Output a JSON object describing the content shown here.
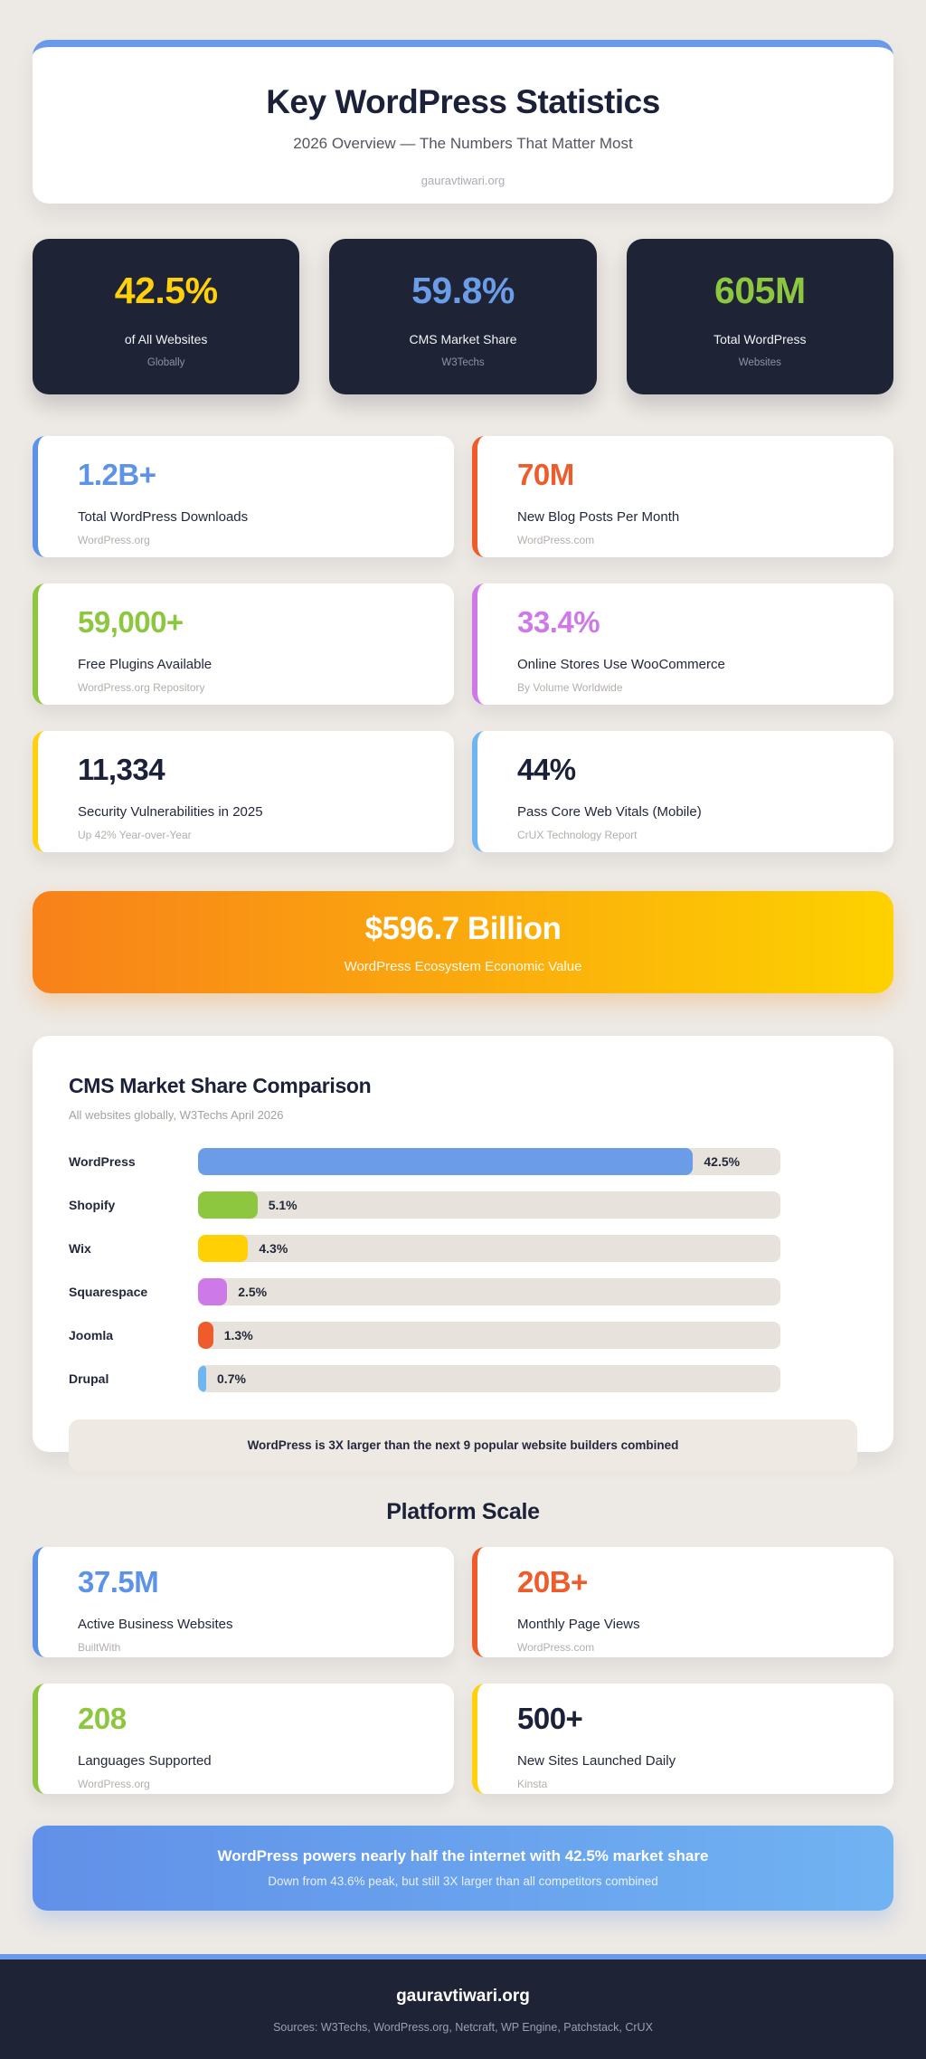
{
  "header": {
    "title": "Key WordPress Statistics",
    "subtitle": "2026 Overview — The Numbers That Matter Most",
    "site": "gauravtiwari.org",
    "accent_color": "#6b9ae8"
  },
  "hero_stats": [
    {
      "value": "42.5%",
      "value_color": "#ffd10a",
      "label": "of All Websites",
      "source": "Globally"
    },
    {
      "value": "59.8%",
      "value_color": "#6b9ce8",
      "label": "CMS Market Share",
      "source": "W3Techs"
    },
    {
      "value": "605M",
      "value_color": "#8dc63f",
      "label": "Total WordPress",
      "source": "Websites"
    }
  ],
  "stat_cards": [
    {
      "value": "1.2B+",
      "accent": "#5c93e8",
      "value_color": "#5c93e8",
      "label": "Total WordPress Downloads",
      "source": "WordPress.org"
    },
    {
      "value": "70M",
      "accent": "#ee5c2c",
      "value_color": "#ee5c2c",
      "label": "New Blog Posts Per Month",
      "source": "WordPress.com"
    },
    {
      "value": "59,000+",
      "accent": "#8dc63f",
      "value_color": "#8dc63f",
      "label": "Free Plugins Available",
      "source": "WordPress.org Repository"
    },
    {
      "value": "33.4%",
      "accent": "#cd7ae8",
      "value_color": "#cd7ae8",
      "label": "Online Stores Use WooCommerce",
      "source": "By Volume Worldwide"
    },
    {
      "value": "11,334",
      "accent": "#ffd10a",
      "value_color": "#1b2138",
      "label": "Security Vulnerabilities in 2025",
      "source": "Up 42% Year-over-Year"
    },
    {
      "value": "44%",
      "accent": "#6fb5f2",
      "value_color": "#1b2138",
      "label": "Pass Core Web Vitals (Mobile)",
      "source": "CrUX Technology Report"
    }
  ],
  "banner_orange": {
    "value": "$596.7 Billion",
    "label": "WordPress Ecosystem Economic Value",
    "gradient": [
      "#f8811a",
      "#fdd200"
    ]
  },
  "chart_data": {
    "type": "bar",
    "orientation": "horizontal",
    "title": "CMS Market Share Comparison",
    "subtitle": "All websites globally, W3Techs April 2026",
    "categories": [
      "WordPress",
      "Shopify",
      "Wix",
      "Squarespace",
      "Joomla",
      "Drupal"
    ],
    "values": [
      42.5,
      5.1,
      4.3,
      2.5,
      1.3,
      0.7
    ],
    "value_labels": [
      "42.5%",
      "5.1%",
      "4.3%",
      "2.5%",
      "1.3%",
      "0.7%"
    ],
    "bar_colors": [
      "#6b9ce8",
      "#8dc63f",
      "#ffd105",
      "#cd7ae8",
      "#ee5c2c",
      "#6fb5f2"
    ],
    "xlim": [
      0,
      50
    ],
    "grid": false,
    "legend": "none",
    "track_color": "#e7e2dc",
    "note": "WordPress is 3X larger than the next 9 popular website builders combined"
  },
  "platform": {
    "heading": "Platform Scale",
    "cards": [
      {
        "value": "37.5M",
        "accent": "#5c93e8",
        "value_color": "#5c93e8",
        "label": "Active Business Websites",
        "source": "BuiltWith"
      },
      {
        "value": "20B+",
        "accent": "#ee5c2c",
        "value_color": "#ee5c2c",
        "label": "Monthly Page Views",
        "source": "WordPress.com"
      },
      {
        "value": "208",
        "accent": "#8dc63f",
        "value_color": "#8dc63f",
        "label": "Languages Supported",
        "source": "WordPress.org"
      },
      {
        "value": "500+",
        "accent": "#ffd10a",
        "value_color": "#1b2138",
        "label": "New Sites Launched Daily",
        "source": "Kinsta"
      }
    ]
  },
  "banner_blue": {
    "line1": "WordPress powers nearly half the internet with 42.5% market share",
    "line2": "Down from 43.6% peak, but still 3X larger than all competitors combined",
    "gradient": [
      "#6190e8",
      "#70b3f2"
    ]
  },
  "footer": {
    "site": "gauravtiwari.org",
    "sources": "Sources: W3Techs, WordPress.org, Netcraft, WP Engine, Patchstack, CrUX"
  }
}
